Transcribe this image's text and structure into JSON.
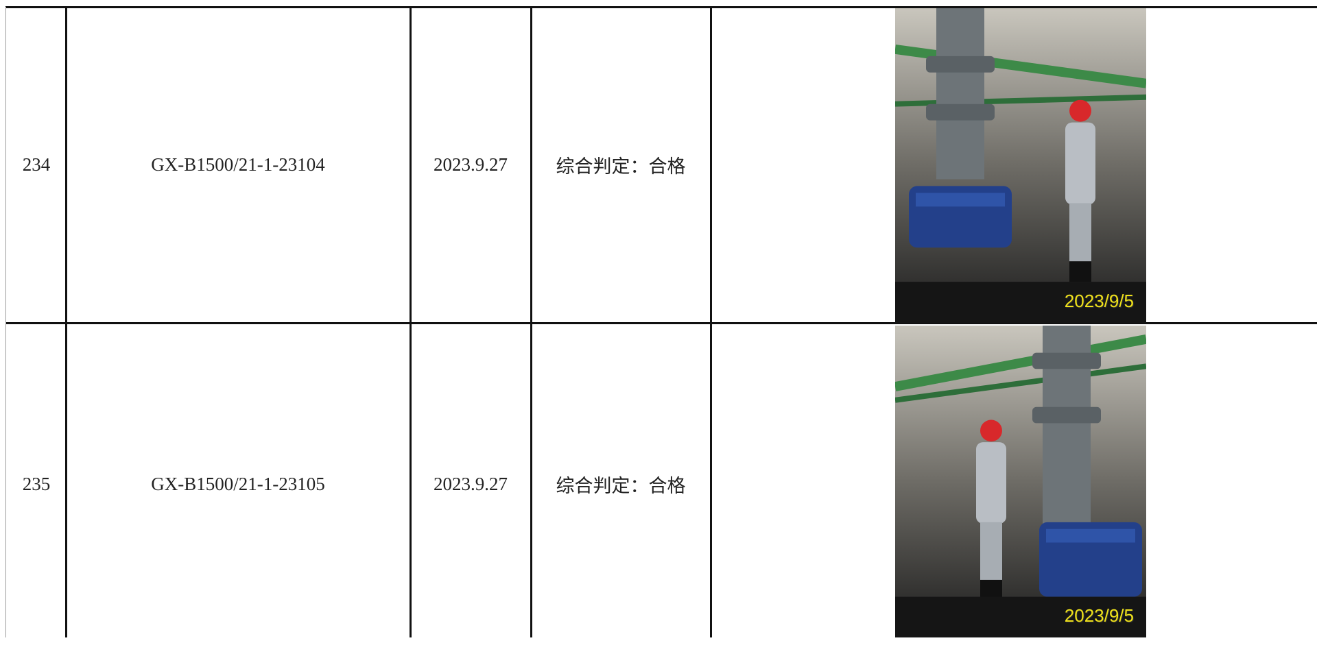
{
  "table": {
    "rows": [
      [
        "234",
        "GX-B1500/21-1-23104",
        "2023.9.27",
        "综合判定：合格",
        "2023/9/5"
      ],
      [
        "235",
        "GX-B1500/21-1-23105",
        "2023.9.27",
        "综合判定：合格",
        "2023/9/5"
      ]
    ]
  }
}
